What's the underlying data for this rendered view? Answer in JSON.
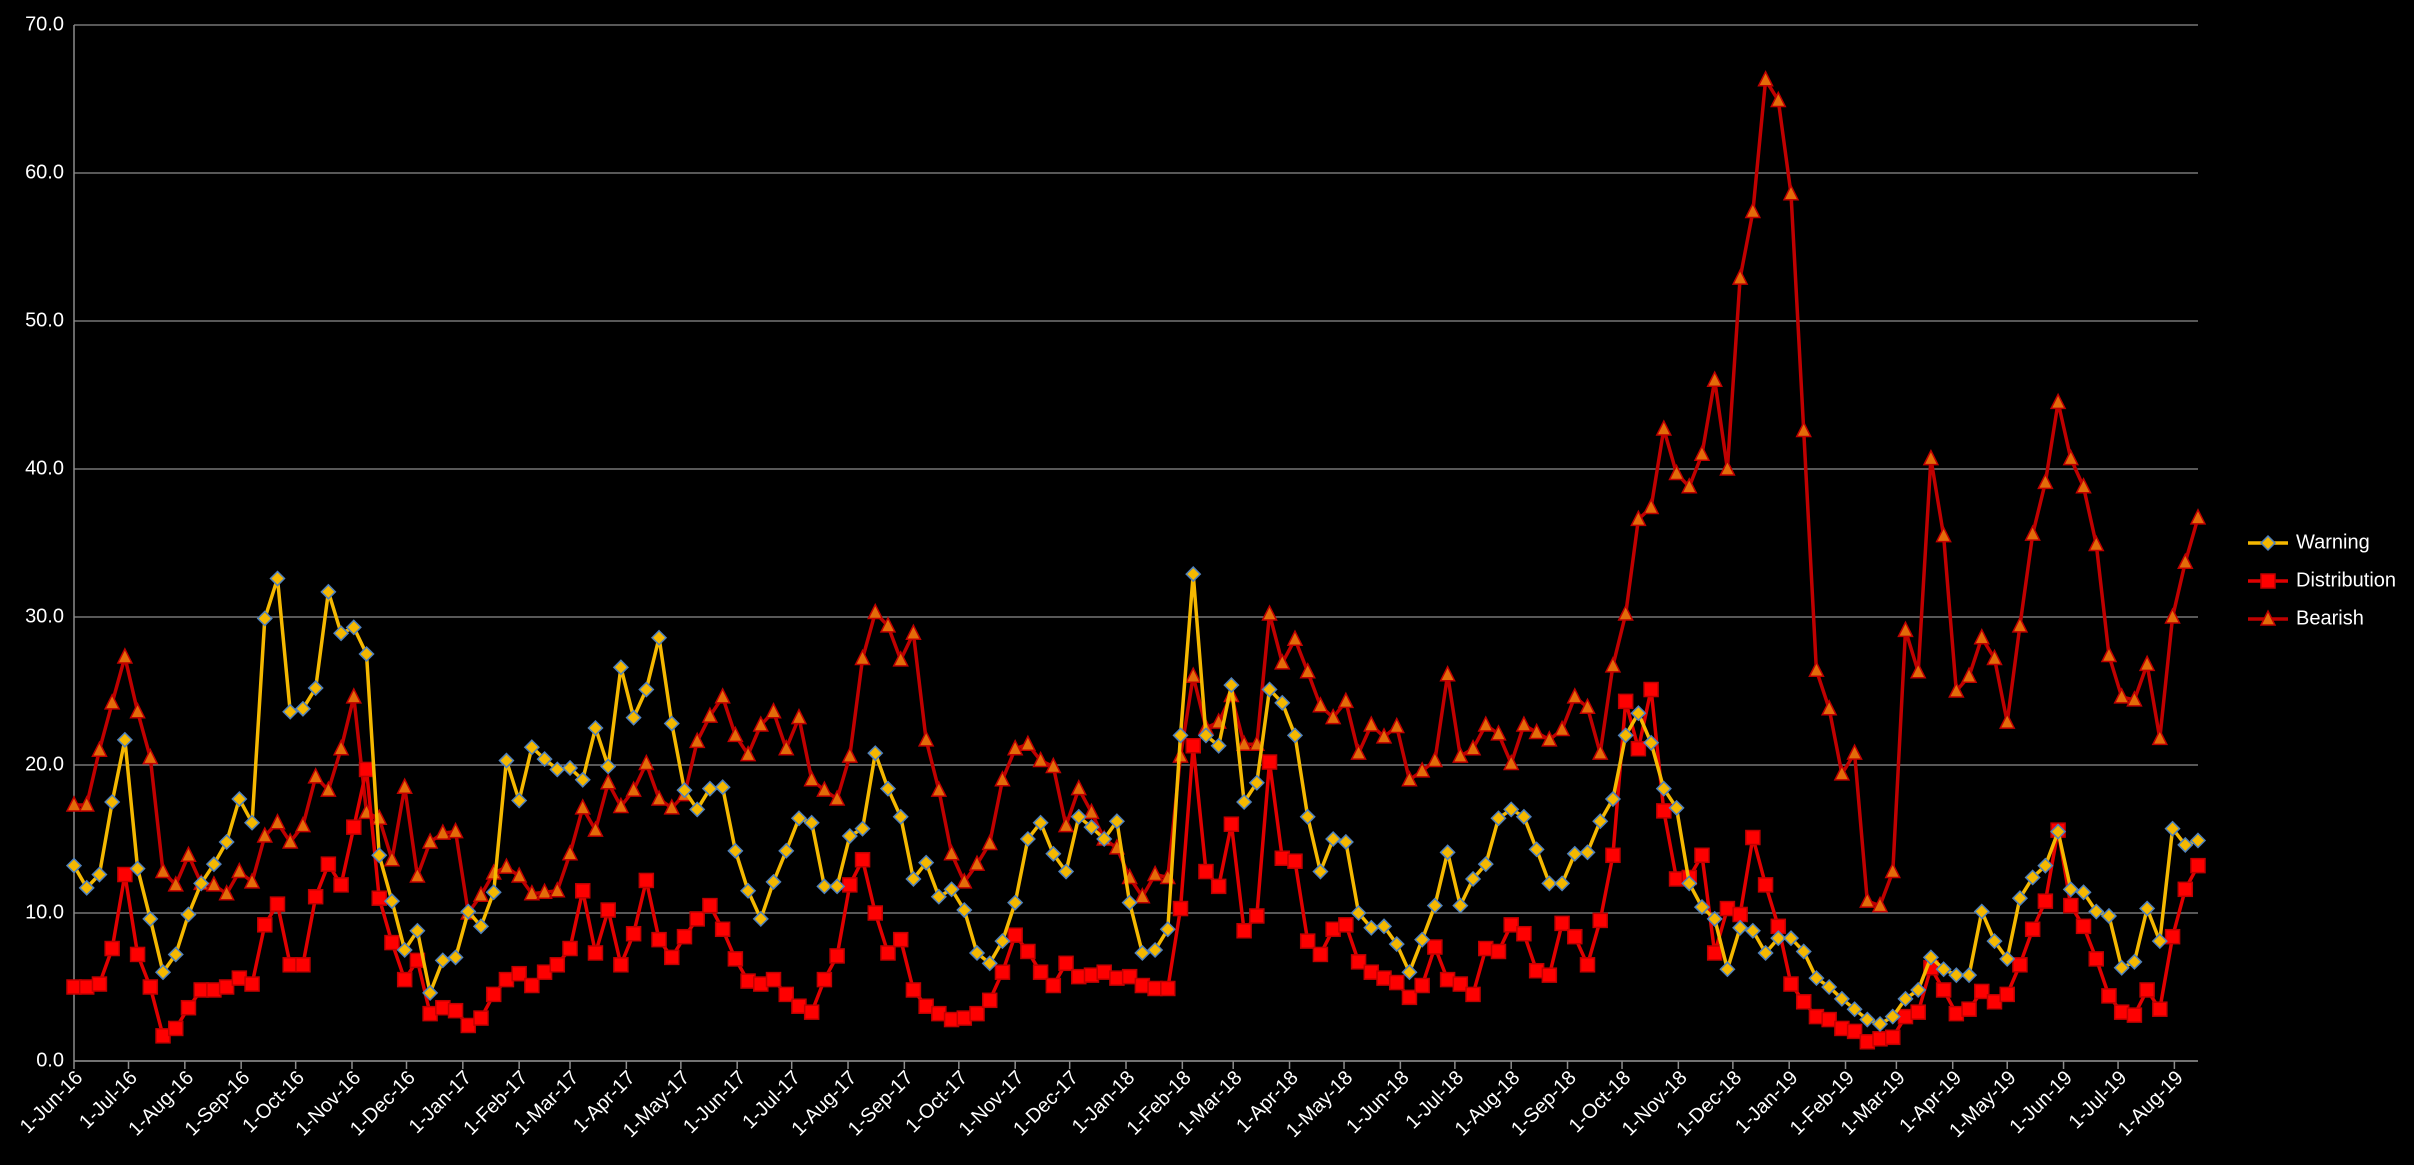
{
  "chart_data": {
    "type": "line",
    "x": [
      "2016-06-01",
      "2016-06-08",
      "2016-06-15",
      "2016-06-22",
      "2016-06-29",
      "2016-07-06",
      "2016-07-13",
      "2016-07-20",
      "2016-07-27",
      "2016-08-03",
      "2016-08-10",
      "2016-08-17",
      "2016-08-24",
      "2016-08-31",
      "2016-09-07",
      "2016-09-14",
      "2016-09-21",
      "2016-09-28",
      "2016-10-05",
      "2016-10-12",
      "2016-10-19",
      "2016-10-26",
      "2016-11-02",
      "2016-11-09",
      "2016-11-16",
      "2016-11-23",
      "2016-11-30",
      "2016-12-07",
      "2016-12-14",
      "2016-12-21",
      "2016-12-28",
      "2017-01-04",
      "2017-01-11",
      "2017-01-18",
      "2017-01-25",
      "2017-02-01",
      "2017-02-08",
      "2017-02-15",
      "2017-02-22",
      "2017-03-01",
      "2017-03-08",
      "2017-03-15",
      "2017-03-22",
      "2017-03-29",
      "2017-04-05",
      "2017-04-12",
      "2017-04-19",
      "2017-04-26",
      "2017-05-03",
      "2017-05-10",
      "2017-05-17",
      "2017-05-24",
      "2017-05-31",
      "2017-06-07",
      "2017-06-14",
      "2017-06-21",
      "2017-06-28",
      "2017-07-05",
      "2017-07-12",
      "2017-07-19",
      "2017-07-26",
      "2017-08-02",
      "2017-08-09",
      "2017-08-16",
      "2017-08-23",
      "2017-08-30",
      "2017-09-06",
      "2017-09-13",
      "2017-09-20",
      "2017-09-27",
      "2017-10-04",
      "2017-10-11",
      "2017-10-18",
      "2017-10-25",
      "2017-11-01",
      "2017-11-08",
      "2017-11-15",
      "2017-11-22",
      "2017-11-29",
      "2017-12-06",
      "2017-12-13",
      "2017-12-20",
      "2017-12-27",
      "2018-01-03",
      "2018-01-10",
      "2018-01-17",
      "2018-01-24",
      "2018-01-31",
      "2018-02-07",
      "2018-02-14",
      "2018-02-21",
      "2018-02-28",
      "2018-03-07",
      "2018-03-14",
      "2018-03-21",
      "2018-03-28",
      "2018-04-04",
      "2018-04-11",
      "2018-04-18",
      "2018-04-25",
      "2018-05-02",
      "2018-05-09",
      "2018-05-16",
      "2018-05-23",
      "2018-05-30",
      "2018-06-06",
      "2018-06-13",
      "2018-06-20",
      "2018-06-27",
      "2018-07-04",
      "2018-07-11",
      "2018-07-18",
      "2018-07-25",
      "2018-08-01",
      "2018-08-08",
      "2018-08-15",
      "2018-08-22",
      "2018-08-29",
      "2018-09-05",
      "2018-09-12",
      "2018-09-19",
      "2018-09-26",
      "2018-10-03",
      "2018-10-10",
      "2018-10-17",
      "2018-10-24",
      "2018-10-31",
      "2018-11-07",
      "2018-11-14",
      "2018-11-21",
      "2018-11-28",
      "2018-12-05",
      "2018-12-12",
      "2018-12-19",
      "2018-12-26",
      "2019-01-02",
      "2019-01-09",
      "2019-01-16",
      "2019-01-23",
      "2019-01-30",
      "2019-02-06",
      "2019-02-13",
      "2019-02-20",
      "2019-02-27",
      "2019-03-06",
      "2019-03-13",
      "2019-03-20",
      "2019-03-27",
      "2019-04-03",
      "2019-04-10",
      "2019-04-17",
      "2019-04-24",
      "2019-05-01",
      "2019-05-08",
      "2019-05-15",
      "2019-05-22",
      "2019-05-29",
      "2019-06-05",
      "2019-06-12",
      "2019-06-19",
      "2019-06-26",
      "2019-07-03",
      "2019-07-10",
      "2019-07-17",
      "2019-07-24",
      "2019-07-31",
      "2019-08-07",
      "2019-08-14"
    ],
    "series": [
      {
        "name": "Warning",
        "color": "#f5b800",
        "marker": "diamond",
        "marker_color": "#f5b800",
        "marker_edge": "#4f81bd",
        "values": [
          13.2,
          11.7,
          12.6,
          17.5,
          21.7,
          13.0,
          9.6,
          6.0,
          7.2,
          9.9,
          12.0,
          13.3,
          14.8,
          17.7,
          16.1,
          29.9,
          32.6,
          23.6,
          23.8,
          25.2,
          31.7,
          28.9,
          29.3,
          27.5,
          13.9,
          10.8,
          7.5,
          8.8,
          4.6,
          6.8,
          7.0,
          10.1,
          9.1,
          11.4,
          20.3,
          17.6,
          21.2,
          20.4,
          19.7,
          19.8,
          19.0,
          22.5,
          19.9,
          26.6,
          23.2,
          25.1,
          28.6,
          22.8,
          18.3,
          17.0,
          18.4,
          18.5,
          14.2,
          11.5,
          9.6,
          12.1,
          14.2,
          16.4,
          16.1,
          11.8,
          11.8,
          15.2,
          15.7,
          20.8,
          18.4,
          16.5,
          12.3,
          13.4,
          11.1,
          11.6,
          10.2,
          7.3,
          6.6,
          8.1,
          10.7,
          15.0,
          16.1,
          14.0,
          12.8,
          16.5,
          15.8,
          15.0,
          16.2,
          10.7,
          7.3,
          7.5,
          8.9,
          22.0,
          32.9,
          22.0,
          21.3,
          25.4,
          17.5,
          18.8,
          25.1,
          24.2,
          22.0,
          16.5,
          12.8,
          15.0,
          14.8,
          10.0,
          9.0,
          9.1,
          7.9,
          6.0,
          8.2,
          10.5,
          14.1,
          10.5,
          12.3,
          13.3,
          16.4,
          17.0,
          16.5,
          14.3,
          12.0,
          12.0,
          14.0,
          14.1,
          16.2,
          17.7,
          22.0,
          23.5,
          21.5,
          18.4,
          17.1,
          12.0,
          10.4,
          9.6,
          6.2,
          9.0,
          8.8,
          7.3,
          8.3,
          8.3,
          7.4,
          5.6,
          5.0,
          4.2,
          3.5,
          2.8,
          2.5,
          3.0,
          4.2,
          4.8,
          7.0,
          6.2,
          5.8,
          5.8,
          10.1,
          8.1,
          6.9,
          11.0,
          12.4,
          13.2,
          15.5,
          11.6,
          11.4,
          10.1,
          9.8,
          6.3,
          6.7,
          10.3,
          8.1,
          15.7,
          14.6,
          14.9
        ]
      },
      {
        "name": "Distribution",
        "color": "#e00000",
        "marker": "square",
        "marker_color": "#ff0000",
        "marker_edge": "#c00000",
        "values": [
          5.0,
          5.0,
          5.2,
          7.6,
          12.6,
          7.2,
          5.0,
          1.7,
          2.2,
          3.6,
          4.8,
          4.8,
          5.0,
          5.6,
          5.2,
          9.2,
          10.6,
          6.5,
          6.5,
          11.1,
          13.3,
          11.9,
          15.8,
          19.7,
          11.0,
          8.0,
          5.5,
          6.8,
          3.2,
          3.6,
          3.4,
          2.4,
          2.9,
          4.5,
          5.5,
          5.9,
          5.1,
          6.0,
          6.5,
          7.6,
          11.5,
          7.3,
          10.2,
          6.5,
          8.6,
          12.2,
          8.2,
          7.0,
          8.4,
          9.6,
          10.5,
          8.9,
          6.9,
          5.4,
          5.2,
          5.5,
          4.5,
          3.7,
          3.3,
          5.5,
          7.1,
          11.9,
          13.6,
          10.0,
          7.3,
          8.2,
          4.8,
          3.7,
          3.2,
          2.8,
          2.9,
          3.2,
          4.1,
          6.0,
          8.5,
          7.4,
          6.0,
          5.1,
          6.6,
          5.7,
          5.8,
          6.0,
          5.6,
          5.7,
          5.1,
          4.9,
          4.9,
          10.3,
          21.3,
          12.8,
          11.8,
          16.0,
          8.8,
          9.8,
          20.2,
          13.7,
          13.5,
          8.1,
          7.2,
          8.9,
          9.2,
          6.7,
          6.0,
          5.6,
          5.3,
          4.3,
          5.1,
          7.7,
          5.5,
          5.2,
          4.5,
          7.6,
          7.4,
          9.2,
          8.6,
          6.1,
          5.8,
          9.3,
          8.4,
          6.5,
          9.5,
          13.9,
          24.3,
          21.1,
          25.1,
          16.9,
          12.3,
          12.4,
          13.9,
          7.3,
          10.3,
          9.9,
          15.1,
          11.9,
          9.1,
          5.2,
          4.0,
          3.0,
          2.8,
          2.2,
          2.0,
          1.3,
          1.5,
          1.6,
          3.0,
          3.3,
          6.3,
          4.8,
          3.2,
          3.5,
          4.7,
          4.0,
          4.5,
          6.5,
          8.9,
          10.8,
          15.6,
          10.5,
          9.1,
          6.9,
          4.4,
          3.3,
          3.1,
          4.8,
          3.5,
          8.4,
          11.6,
          13.2
        ]
      },
      {
        "name": "Bearish",
        "color": "#c00000",
        "marker": "triangle",
        "marker_color": "#e36c09",
        "marker_edge": "#c00000",
        "values": [
          17.3,
          17.3,
          21.0,
          24.2,
          27.3,
          23.6,
          20.5,
          12.8,
          11.9,
          13.9,
          12.0,
          11.9,
          11.3,
          12.8,
          12.1,
          15.2,
          16.1,
          14.8,
          15.9,
          19.2,
          18.3,
          21.1,
          24.6,
          16.8,
          16.4,
          13.6,
          18.5,
          12.5,
          14.8,
          15.4,
          15.5,
          10.0,
          11.2,
          12.7,
          13.1,
          12.5,
          11.3,
          11.4,
          11.5,
          14.0,
          17.1,
          15.6,
          18.8,
          17.2,
          18.3,
          20.1,
          17.7,
          17.1,
          18.0,
          21.6,
          23.3,
          24.6,
          22.0,
          20.7,
          22.7,
          23.6,
          21.1,
          23.2,
          19.0,
          18.3,
          17.7,
          20.6,
          27.2,
          30.3,
          29.4,
          27.1,
          28.9,
          21.7,
          18.3,
          14.0,
          12.1,
          13.3,
          14.7,
          19.0,
          21.1,
          21.4,
          20.3,
          19.9,
          15.9,
          18.4,
          16.8,
          15.0,
          14.4,
          12.4,
          11.1,
          12.6,
          12.4,
          20.6,
          26.0,
          22.5,
          22.9,
          24.7,
          21.4,
          21.4,
          30.2,
          26.9,
          28.5,
          26.3,
          24.0,
          23.2,
          24.3,
          20.8,
          22.7,
          21.9,
          22.6,
          19.0,
          19.6,
          20.3,
          26.1,
          20.6,
          21.1,
          22.7,
          22.1,
          20.1,
          22.7,
          22.2,
          21.7,
          22.4,
          24.6,
          23.9,
          20.8,
          26.7,
          30.2,
          36.6,
          37.4,
          42.7,
          39.7,
          38.8,
          41.0,
          46.0,
          40.0,
          52.9,
          57.4,
          66.3,
          64.9,
          58.6,
          42.6,
          26.4,
          23.8,
          19.4,
          20.8,
          10.8,
          10.5,
          12.8,
          29.1,
          26.3,
          40.7,
          35.5,
          25.0,
          26.0,
          28.6,
          27.2,
          22.9,
          29.4,
          35.6,
          39.1,
          44.5,
          40.7,
          38.8,
          34.9,
          27.4,
          24.6,
          24.4,
          26.8,
          21.8,
          30.0,
          33.7,
          36.7
        ]
      }
    ],
    "xlim": [
      "2016-06-01",
      "2019-08-14"
    ],
    "xticks": [
      {
        "value": "2016-06-01",
        "label": "1-Jun-16"
      },
      {
        "value": "2016-07-01",
        "label": "1-Jul-16"
      },
      {
        "value": "2016-08-01",
        "label": "1-Aug-16"
      },
      {
        "value": "2016-09-01",
        "label": "1-Sep-16"
      },
      {
        "value": "2016-10-01",
        "label": "1-Oct-16"
      },
      {
        "value": "2016-11-01",
        "label": "1-Nov-16"
      },
      {
        "value": "2016-12-01",
        "label": "1-Dec-16"
      },
      {
        "value": "2017-01-01",
        "label": "1-Jan-17"
      },
      {
        "value": "2017-02-01",
        "label": "1-Feb-17"
      },
      {
        "value": "2017-03-01",
        "label": "1-Mar-17"
      },
      {
        "value": "2017-04-01",
        "label": "1-Apr-17"
      },
      {
        "value": "2017-05-01",
        "label": "1-May-17"
      },
      {
        "value": "2017-06-01",
        "label": "1-Jun-17"
      },
      {
        "value": "2017-07-01",
        "label": "1-Jul-17"
      },
      {
        "value": "2017-08-01",
        "label": "1-Aug-17"
      },
      {
        "value": "2017-09-01",
        "label": "1-Sep-17"
      },
      {
        "value": "2017-10-01",
        "label": "1-Oct-17"
      },
      {
        "value": "2017-11-01",
        "label": "1-Nov-17"
      },
      {
        "value": "2017-12-01",
        "label": "1-Dec-17"
      },
      {
        "value": "2018-01-01",
        "label": "1-Jan-18"
      },
      {
        "value": "2018-02-01",
        "label": "1-Feb-18"
      },
      {
        "value": "2018-03-01",
        "label": "1-Mar-18"
      },
      {
        "value": "2018-04-01",
        "label": "1-Apr-18"
      },
      {
        "value": "2018-05-01",
        "label": "1-May-18"
      },
      {
        "value": "2018-06-01",
        "label": "1-Jun-18"
      },
      {
        "value": "2018-07-01",
        "label": "1-Jul-18"
      },
      {
        "value": "2018-08-01",
        "label": "1-Aug-18"
      },
      {
        "value": "2018-09-01",
        "label": "1-Sep-18"
      },
      {
        "value": "2018-10-01",
        "label": "1-Oct-18"
      },
      {
        "value": "2018-11-01",
        "label": "1-Nov-18"
      },
      {
        "value": "2018-12-01",
        "label": "1-Dec-18"
      },
      {
        "value": "2019-01-01",
        "label": "1-Jan-19"
      },
      {
        "value": "2019-02-01",
        "label": "1-Feb-19"
      },
      {
        "value": "2019-03-01",
        "label": "1-Mar-19"
      },
      {
        "value": "2019-04-01",
        "label": "1-Apr-19"
      },
      {
        "value": "2019-05-01",
        "label": "1-May-19"
      },
      {
        "value": "2019-06-01",
        "label": "1-Jun-19"
      },
      {
        "value": "2019-07-01",
        "label": "1-Jul-19"
      },
      {
        "value": "2019-08-01",
        "label": "1-Aug-19"
      }
    ],
    "ylim": [
      0,
      70
    ],
    "yticks": [
      {
        "value": 0,
        "label": "0.0"
      },
      {
        "value": 10,
        "label": "10.0"
      },
      {
        "value": 20,
        "label": "20.0"
      },
      {
        "value": 30,
        "label": "30.0"
      },
      {
        "value": 40,
        "label": "40.0"
      },
      {
        "value": 50,
        "label": "50.0"
      },
      {
        "value": 60,
        "label": "60.0"
      },
      {
        "value": 70,
        "label": "70.0"
      }
    ],
    "grid": true,
    "legend": "right"
  }
}
